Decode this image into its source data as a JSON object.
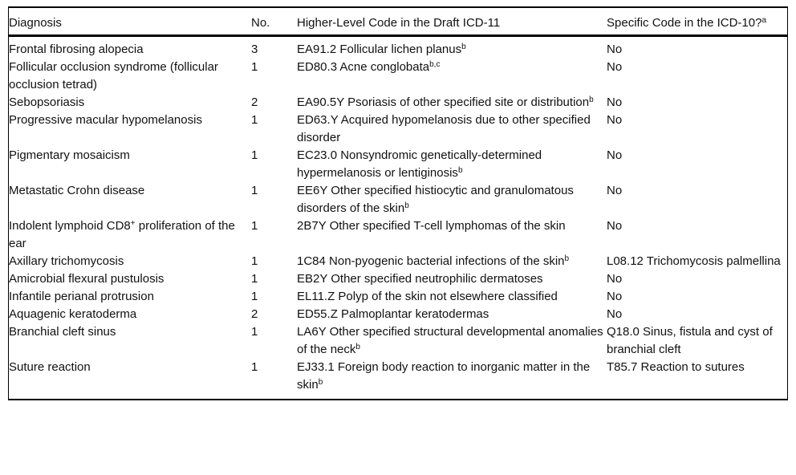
{
  "colors": {
    "text": "#111111",
    "rule": "#000000",
    "background": "#ffffff"
  },
  "table": {
    "columns": [
      {
        "key": "diagnosis",
        "segments": [
          {
            "t": "Diagnosis"
          }
        ]
      },
      {
        "key": "count",
        "segments": [
          {
            "t": "No."
          }
        ]
      },
      {
        "key": "icd11",
        "segments": [
          {
            "t": "Higher-Level Code in the Draft ICD-11"
          }
        ]
      },
      {
        "key": "icd10",
        "segments": [
          {
            "t": "Specific Code in the ICD-10?"
          },
          {
            "t": "a",
            "sup": true
          }
        ]
      }
    ],
    "rows": [
      {
        "diagnosis": [
          {
            "t": "Frontal fibrosing alopecia"
          }
        ],
        "count": [
          {
            "t": "3"
          }
        ],
        "icd11": [
          {
            "t": "EA91.2 Follicular lichen planus"
          },
          {
            "t": "b",
            "sup": true
          }
        ],
        "icd10": [
          {
            "t": "No"
          }
        ]
      },
      {
        "diagnosis": [
          {
            "t": "Follicular occlusion syndrome (follicular occlusion tetrad)"
          }
        ],
        "count": [
          {
            "t": "1"
          }
        ],
        "icd11": [
          {
            "t": "ED80.3 Acne conglobata"
          },
          {
            "t": "b,c",
            "sup": true
          }
        ],
        "icd10": [
          {
            "t": "No"
          }
        ]
      },
      {
        "diagnosis": [
          {
            "t": "Sebopsoriasis"
          }
        ],
        "count": [
          {
            "t": "2"
          }
        ],
        "icd11": [
          {
            "t": "EA90.5Y Psoriasis of other specified site or distribution"
          },
          {
            "t": "b",
            "sup": true
          }
        ],
        "icd10": [
          {
            "t": "No"
          }
        ]
      },
      {
        "diagnosis": [
          {
            "t": "Progressive macular hypomelanosis"
          }
        ],
        "count": [
          {
            "t": "1"
          }
        ],
        "icd11": [
          {
            "t": "ED63.Y Acquired hypomelanosis due to other specified disorder"
          }
        ],
        "icd10": [
          {
            "t": "No"
          }
        ]
      },
      {
        "diagnosis": [
          {
            "t": "Pigmentary mosaicism"
          }
        ],
        "count": [
          {
            "t": "1"
          }
        ],
        "icd11": [
          {
            "t": "EC23.0 Nonsyndromic genetically-determined hypermelanosis or lentiginosis"
          },
          {
            "t": "b",
            "sup": true
          }
        ],
        "icd10": [
          {
            "t": "No"
          }
        ]
      },
      {
        "diagnosis": [
          {
            "t": "Metastatic Crohn disease"
          }
        ],
        "count": [
          {
            "t": "1"
          }
        ],
        "icd11": [
          {
            "t": "EE6Y Other specified histiocytic and granulomatous disorders of the skin"
          },
          {
            "t": "b",
            "sup": true
          }
        ],
        "icd10": [
          {
            "t": "No"
          }
        ]
      },
      {
        "diagnosis": [
          {
            "t": "Indolent lymphoid CD8"
          },
          {
            "t": "+",
            "sup": true
          },
          {
            "t": " proliferation of the ear"
          }
        ],
        "count": [
          {
            "t": "1"
          }
        ],
        "icd11": [
          {
            "t": "2B7Y Other specified T-cell lymphomas of the skin"
          }
        ],
        "icd10": [
          {
            "t": "No"
          }
        ]
      },
      {
        "diagnosis": [
          {
            "t": "Axillary trichomycosis"
          }
        ],
        "count": [
          {
            "t": "1"
          }
        ],
        "icd11": [
          {
            "t": "1C84 Non-pyogenic bacterial infections of the skin"
          },
          {
            "t": "b",
            "sup": true
          }
        ],
        "icd10": [
          {
            "t": "L08.12 Trichomycosis palmellina"
          }
        ]
      },
      {
        "diagnosis": [
          {
            "t": "Amicrobial flexural pustulosis"
          }
        ],
        "count": [
          {
            "t": "1"
          }
        ],
        "icd11": [
          {
            "t": "EB2Y Other specified neutrophilic dermatoses"
          }
        ],
        "icd10": [
          {
            "t": "No"
          }
        ]
      },
      {
        "diagnosis": [
          {
            "t": "Infantile perianal protrusion"
          }
        ],
        "count": [
          {
            "t": "1"
          }
        ],
        "icd11": [
          {
            "t": "EL11.Z Polyp of the skin not elsewhere classified"
          }
        ],
        "icd10": [
          {
            "t": "No"
          }
        ]
      },
      {
        "diagnosis": [
          {
            "t": "Aquagenic keratoderma"
          }
        ],
        "count": [
          {
            "t": "2"
          }
        ],
        "icd11": [
          {
            "t": "ED55.Z Palmoplantar keratodermas"
          }
        ],
        "icd10": [
          {
            "t": "No"
          }
        ]
      },
      {
        "diagnosis": [
          {
            "t": "Branchial cleft sinus"
          }
        ],
        "count": [
          {
            "t": "1"
          }
        ],
        "icd11": [
          {
            "t": "LA6Y Other specified structural developmental anomalies of the neck"
          },
          {
            "t": "b",
            "sup": true
          }
        ],
        "icd10": [
          {
            "t": "Q18.0 Sinus, fistula and cyst of branchial cleft"
          }
        ]
      },
      {
        "diagnosis": [
          {
            "t": "Suture reaction"
          }
        ],
        "count": [
          {
            "t": "1"
          }
        ],
        "icd11": [
          {
            "t": "EJ33.1 Foreign body reaction to inorganic matter in the skin"
          },
          {
            "t": "b",
            "sup": true
          }
        ],
        "icd10": [
          {
            "t": "T85.7 Reaction to sutures"
          }
        ]
      }
    ]
  }
}
